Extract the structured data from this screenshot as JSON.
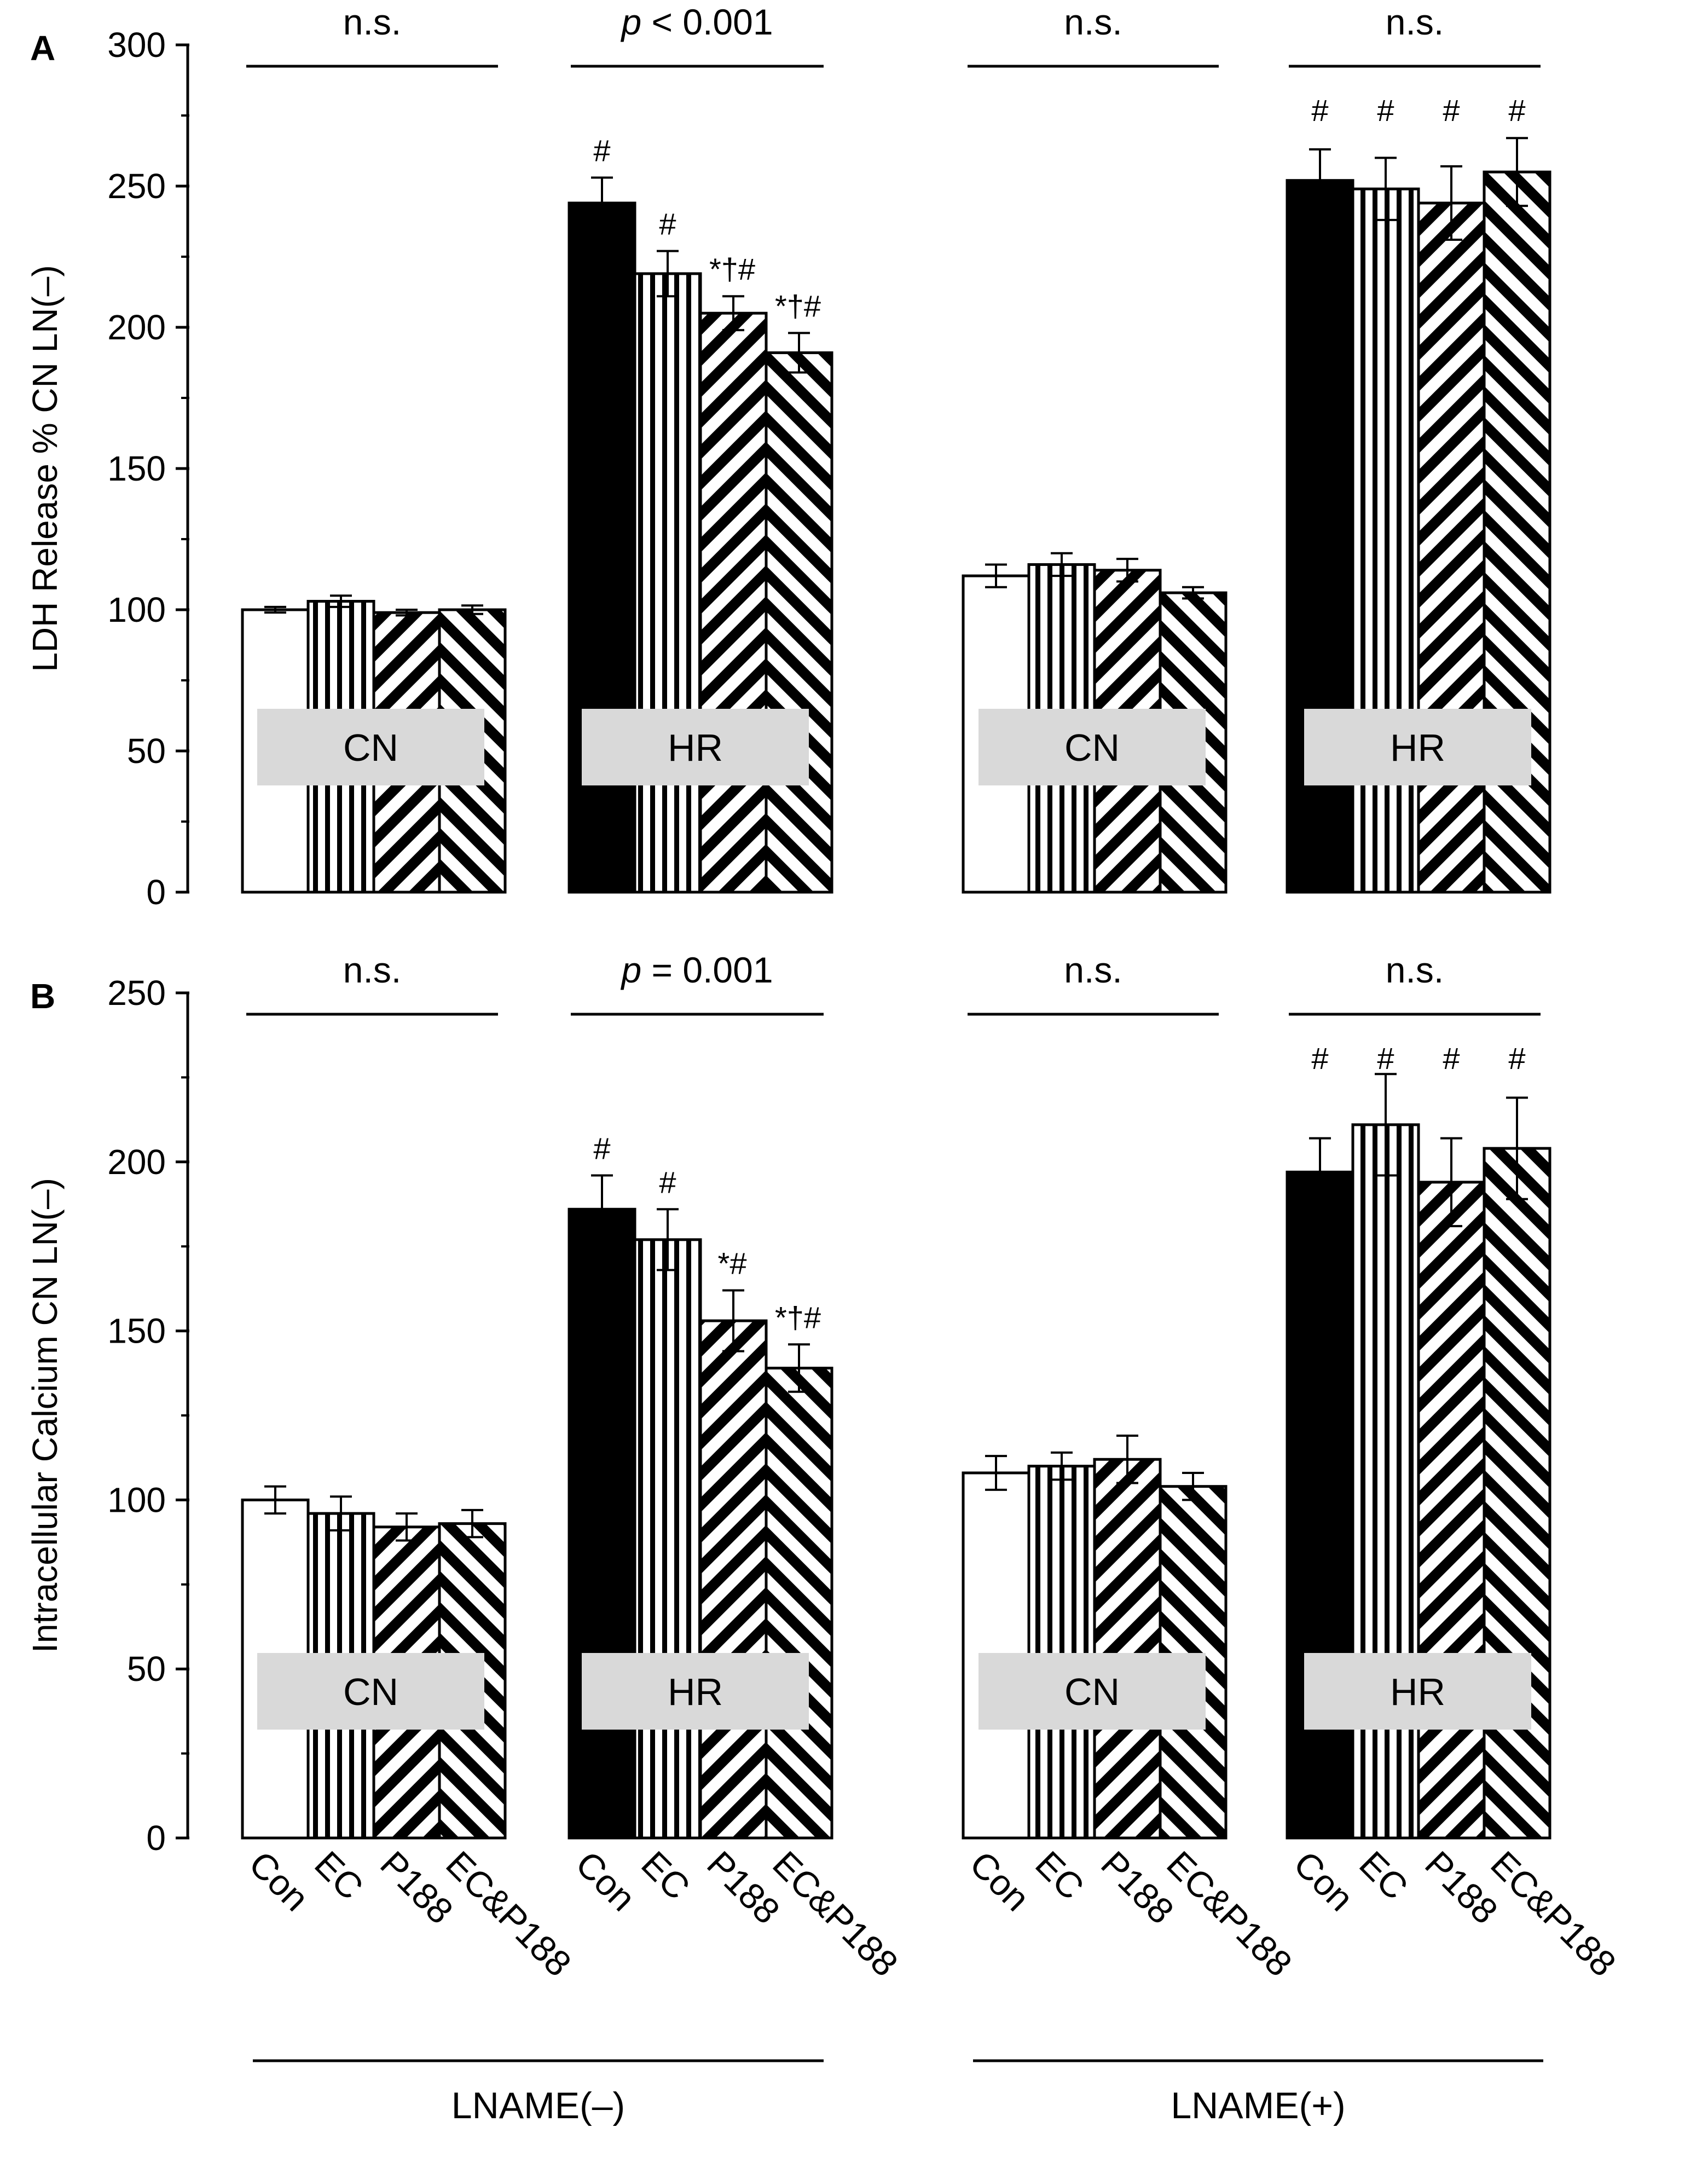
{
  "colors": {
    "axis": "#000000",
    "box": "#d9d9d9",
    "background": "#ffffff"
  },
  "categories": [
    "Con",
    "EC",
    "P188",
    "EC&P188"
  ],
  "group_labels": [
    "LNAME(–)",
    "LNAME(+)"
  ],
  "chart_data": [
    {
      "panel": "A",
      "type": "bar",
      "ylabel": "LDH Release % CN LN(–)",
      "ylim": [
        0,
        300
      ],
      "yticks": [
        0,
        50,
        100,
        150,
        200,
        250,
        300
      ],
      "clusters": [
        {
          "label": "CN",
          "group": "LNAME(–)",
          "significance": "n.s.",
          "values": [
            100,
            103,
            99,
            100
          ],
          "errors": [
            1,
            2,
            1,
            1.5
          ],
          "marks": [
            "",
            "",
            "",
            ""
          ]
        },
        {
          "label": "HR",
          "group": "LNAME(–)",
          "significance_prefix": "p",
          "significance": " < 0.001",
          "values": [
            244,
            219,
            205,
            191
          ],
          "errors": [
            9,
            8,
            6,
            7
          ],
          "marks": [
            "#",
            "#",
            "*†#",
            "*†#"
          ]
        },
        {
          "label": "CN",
          "group": "LNAME(+)",
          "significance": "n.s.",
          "values": [
            112,
            116,
            114,
            106
          ],
          "errors": [
            4,
            4,
            4,
            2
          ],
          "marks": [
            "",
            "",
            "",
            ""
          ]
        },
        {
          "label": "HR",
          "group": "LNAME(+)",
          "significance": "n.s.",
          "values": [
            252,
            249,
            244,
            255
          ],
          "errors": [
            11,
            11,
            13,
            12
          ],
          "marks": [
            "#",
            "#",
            "#",
            "#"
          ]
        }
      ]
    },
    {
      "panel": "B",
      "type": "bar",
      "ylabel": "Intracellular Calcium CN LN(–)",
      "ylim": [
        0,
        250
      ],
      "yticks": [
        0,
        50,
        100,
        150,
        200,
        250
      ],
      "clusters": [
        {
          "label": "CN",
          "group": "LNAME(–)",
          "significance": "n.s.",
          "values": [
            100,
            96,
            92,
            93
          ],
          "errors": [
            4,
            5,
            4,
            4
          ],
          "marks": [
            "",
            "",
            "",
            ""
          ]
        },
        {
          "label": "HR",
          "group": "LNAME(–)",
          "significance_prefix": "p",
          "significance": " = 0.001",
          "values": [
            186,
            177,
            153,
            139
          ],
          "errors": [
            10,
            9,
            9,
            7
          ],
          "marks": [
            "#",
            "#",
            "*#",
            "*†#"
          ]
        },
        {
          "label": "CN",
          "group": "LNAME(+)",
          "significance": "n.s.",
          "values": [
            108,
            110,
            112,
            104
          ],
          "errors": [
            5,
            4,
            7,
            4
          ],
          "marks": [
            "",
            "",
            "",
            ""
          ]
        },
        {
          "label": "HR",
          "group": "LNAME(+)",
          "significance": "n.s.",
          "values": [
            197,
            211,
            194,
            204
          ],
          "errors": [
            10,
            15,
            13,
            15
          ],
          "marks": [
            "#",
            "#",
            "#",
            "#"
          ]
        }
      ]
    }
  ]
}
